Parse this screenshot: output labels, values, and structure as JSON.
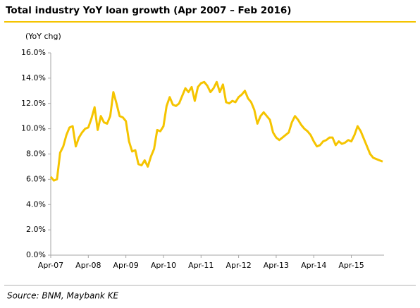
{
  "chart_data": {
    "type": "line",
    "title": "Total industry YoY loan growth (Apr 2007 – Feb 2016)",
    "y_label": "(YoY chg)",
    "source": "Source: BNM, Maybank KE",
    "categories": [
      "Apr-07",
      null,
      null,
      null,
      null,
      null,
      null,
      null,
      null,
      null,
      null,
      null,
      "Apr-08",
      null,
      null,
      null,
      null,
      null,
      null,
      null,
      null,
      null,
      null,
      null,
      "Apr-09",
      null,
      null,
      null,
      null,
      null,
      null,
      null,
      null,
      null,
      null,
      null,
      "Apr-10",
      null,
      null,
      null,
      null,
      null,
      null,
      null,
      null,
      null,
      null,
      null,
      "Apr-11",
      null,
      null,
      null,
      null,
      null,
      null,
      null,
      null,
      null,
      null,
      null,
      "Apr-12",
      null,
      null,
      null,
      null,
      null,
      null,
      null,
      null,
      null,
      null,
      null,
      "Apr-13",
      null,
      null,
      null,
      null,
      null,
      null,
      null,
      null,
      null,
      null,
      null,
      "Apr-14",
      null,
      null,
      null,
      null,
      null,
      null,
      null,
      null,
      null,
      null,
      null,
      "Apr-15",
      null,
      null,
      null,
      null,
      null,
      null,
      null,
      null,
      null,
      null
    ],
    "values": [
      6.2,
      5.9,
      6.0,
      8.1,
      8.6,
      9.5,
      10.1,
      10.2,
      8.6,
      9.3,
      9.7,
      10.0,
      10.1,
      10.8,
      11.7,
      9.9,
      11.0,
      10.5,
      10.4,
      11.0,
      12.9,
      12.0,
      11.0,
      10.9,
      10.6,
      9.0,
      8.2,
      8.3,
      7.2,
      7.1,
      7.5,
      7.0,
      7.8,
      8.4,
      9.9,
      9.8,
      10.2,
      11.8,
      12.5,
      11.9,
      11.8,
      12.0,
      12.6,
      13.2,
      12.9,
      13.3,
      12.2,
      13.3,
      13.6,
      13.7,
      13.4,
      12.9,
      13.2,
      13.7,
      12.9,
      13.5,
      12.1,
      12.0,
      12.2,
      12.1,
      12.5,
      12.7,
      13.0,
      12.4,
      12.1,
      11.5,
      10.4,
      11.0,
      11.3,
      11.0,
      10.7,
      9.7,
      9.3,
      9.1,
      9.3,
      9.5,
      9.7,
      10.5,
      11.0,
      10.7,
      10.3,
      10.0,
      9.8,
      9.5,
      9.0,
      8.6,
      8.7,
      9.0,
      9.1,
      9.3,
      9.3,
      8.7,
      9.0,
      8.8,
      8.9,
      9.1,
      9.0,
      9.5,
      10.2,
      9.8,
      9.2,
      8.6,
      8.0,
      7.7,
      7.6,
      7.5,
      7.4
    ],
    "color": "#f5c400",
    "ylim": [
      0,
      16
    ],
    "yticks": [
      {
        "value": 0,
        "label": "0.0%"
      },
      {
        "value": 2,
        "label": "2.0%"
      },
      {
        "value": 4,
        "label": "4.0%"
      },
      {
        "value": 6,
        "label": "6.0%"
      },
      {
        "value": 8,
        "label": "8.0%"
      },
      {
        "value": 10,
        "label": "10.0%"
      },
      {
        "value": 12,
        "label": "12.0%"
      },
      {
        "value": 14,
        "label": "14.0%"
      },
      {
        "value": 16,
        "label": "16.0%"
      }
    ],
    "grid": false
  }
}
